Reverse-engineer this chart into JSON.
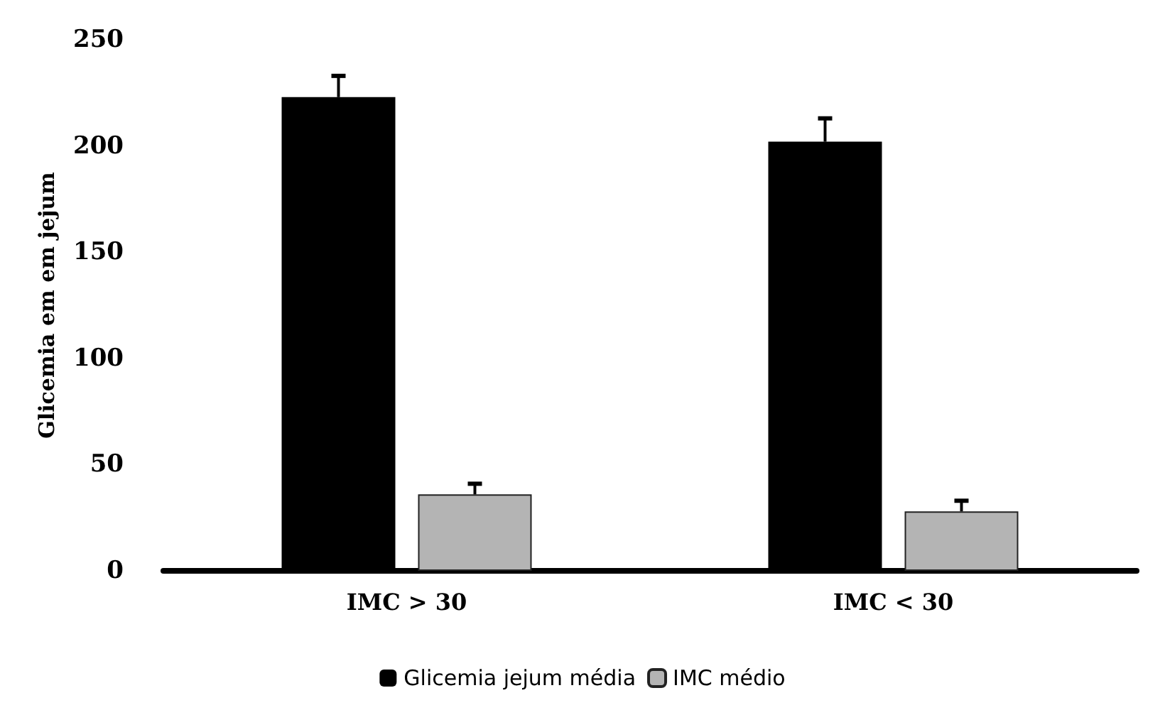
{
  "chart_data": {
    "type": "bar",
    "ylabel": "Glicemia em em jejum",
    "categories": [
      "IMC > 30",
      "IMC < 30"
    ],
    "series": [
      {
        "name": "Glicemia jejum média",
        "color": "#000000",
        "values": [
          223,
          202
        ],
        "errors": [
          [
            223,
            233
          ],
          [
            202,
            213
          ]
        ]
      },
      {
        "name": "IMC médio",
        "color": "#b4b4b4",
        "values": [
          36,
          28
        ],
        "errors": [
          [
            36,
            41
          ],
          [
            28,
            33
          ]
        ]
      }
    ],
    "ylim": [
      0,
      250
    ],
    "yticks": [
      0,
      50,
      100,
      150,
      200,
      250
    ],
    "grid": false,
    "legend": "bottom"
  }
}
